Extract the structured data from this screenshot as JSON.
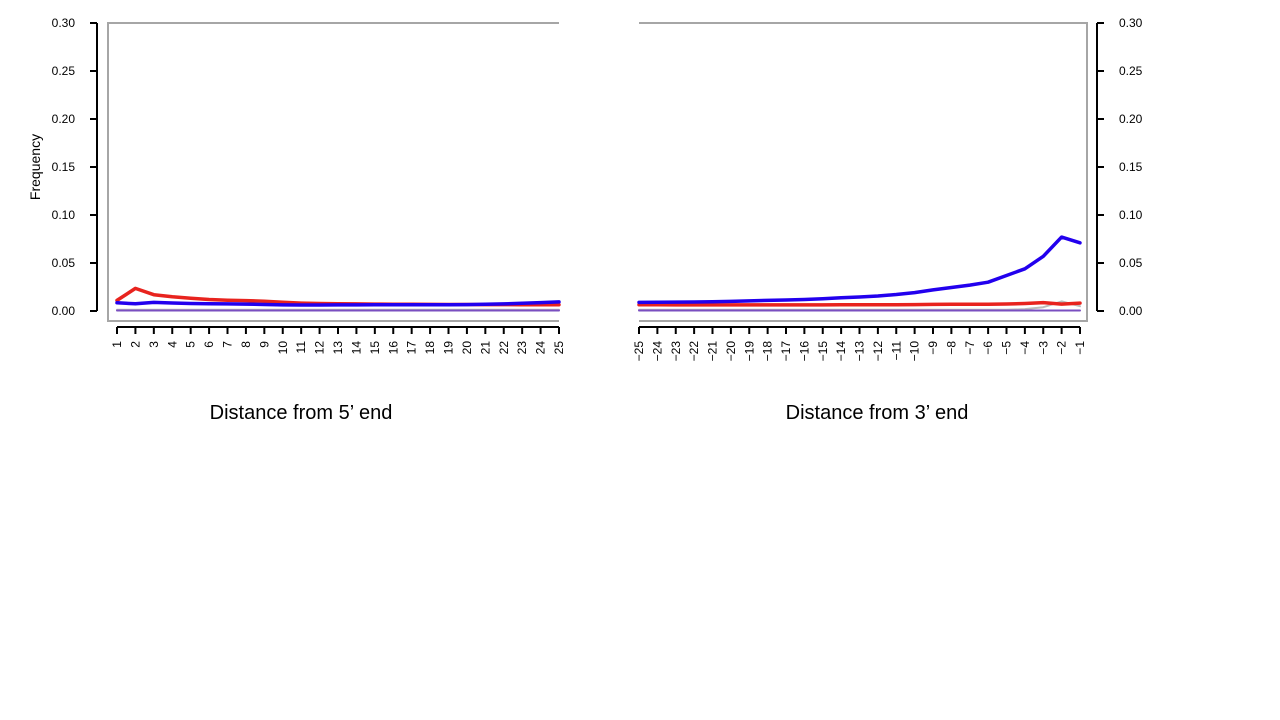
{
  "chart_data": [
    {
      "type": "line",
      "panel": "left",
      "xlabel": "Distance from 5’ end",
      "ylabel": "Frequency",
      "ylim": [
        0,
        0.3
      ],
      "y_ticks": [
        "0.00",
        "0.05",
        "0.10",
        "0.15",
        "0.20",
        "0.25",
        "0.30"
      ],
      "y_axis_side": "left",
      "x": [
        "1",
        "2",
        "3",
        "4",
        "5",
        "6",
        "7",
        "8",
        "9",
        "10",
        "11",
        "12",
        "13",
        "14",
        "15",
        "16",
        "17",
        "18",
        "19",
        "20",
        "21",
        "22",
        "23",
        "24",
        "25"
      ],
      "series": [
        {
          "color": "#2200ee",
          "values": [
            0.0085,
            0.0075,
            0.009,
            0.0083,
            0.0078,
            0.0076,
            0.0074,
            0.0072,
            0.0068,
            0.0064,
            0.0062,
            0.0063,
            0.0064,
            0.0064,
            0.0065,
            0.0065,
            0.0065,
            0.0065,
            0.0066,
            0.0067,
            0.007,
            0.0074,
            0.008,
            0.0088,
            0.0095
          ]
        },
        {
          "color": "#e8231e",
          "values": [
            0.011,
            0.0235,
            0.017,
            0.0148,
            0.0132,
            0.012,
            0.0112,
            0.0108,
            0.0102,
            0.0091,
            0.0082,
            0.0078,
            0.0076,
            0.0074,
            0.0072,
            0.0071,
            0.007,
            0.0069,
            0.0068,
            0.0068,
            0.0067,
            0.0067,
            0.0066,
            0.0066,
            0.0065
          ]
        },
        {
          "color": "#7a4fc0",
          "values": [
            0.0005,
            0.0005,
            0.0005,
            0.0005,
            0.0005,
            0.0005,
            0.0005,
            0.0005,
            0.0005,
            0.0005,
            0.0005,
            0.0005,
            0.0005,
            0.0005,
            0.0005,
            0.0005,
            0.0005,
            0.0005,
            0.0005,
            0.0005,
            0.0005,
            0.0005,
            0.0005,
            0.0005,
            0.0005
          ]
        },
        {
          "color": "#bbbbbb",
          "values": [
            0.0012,
            0.0012,
            0.0012,
            0.0012,
            0.0012,
            0.0012,
            0.0012,
            0.0012,
            0.0012,
            0.0012,
            0.0012,
            0.0012,
            0.0012,
            0.0012,
            0.0012,
            0.0012,
            0.0012,
            0.0012,
            0.0012,
            0.0012,
            0.0012,
            0.0012,
            0.0012,
            0.0012,
            0.0012
          ]
        }
      ]
    },
    {
      "type": "line",
      "panel": "right",
      "xlabel": "Distance from 3’ end",
      "ylabel": "",
      "ylim": [
        0,
        0.3
      ],
      "y_ticks": [
        "0.00",
        "0.05",
        "0.10",
        "0.15",
        "0.20",
        "0.25",
        "0.30"
      ],
      "y_axis_side": "right",
      "x": [
        "−25",
        "−24",
        "−23",
        "−22",
        "−21",
        "−20",
        "−19",
        "−18",
        "−17",
        "−16",
        "−15",
        "−14",
        "−13",
        "−12",
        "−11",
        "−10",
        "−9",
        "−8",
        "−7",
        "−6",
        "−5",
        "−4",
        "−3",
        "−2",
        "−1"
      ],
      "series": [
        {
          "color": "#2200ee",
          "values": [
            0.009,
            0.0092,
            0.0093,
            0.0094,
            0.0096,
            0.01,
            0.0105,
            0.011,
            0.0115,
            0.012,
            0.0128,
            0.0138,
            0.0146,
            0.0156,
            0.0172,
            0.0192,
            0.022,
            0.0245,
            0.027,
            0.03,
            0.037,
            0.044,
            0.057,
            0.077,
            0.071
          ]
        },
        {
          "color": "#e8231e",
          "values": [
            0.0065,
            0.0065,
            0.0064,
            0.0064,
            0.0064,
            0.0064,
            0.0064,
            0.0064,
            0.0064,
            0.0064,
            0.0064,
            0.0065,
            0.0065,
            0.0065,
            0.0066,
            0.0067,
            0.0069,
            0.0071,
            0.007,
            0.007,
            0.0073,
            0.0078,
            0.0088,
            0.0072,
            0.0082
          ]
        },
        {
          "color": "#7a4fc0",
          "values": [
            0.0005,
            0.0005,
            0.0005,
            0.0005,
            0.0005,
            0.0005,
            0.0005,
            0.0005,
            0.0005,
            0.0005,
            0.0005,
            0.0005,
            0.0005,
            0.0005,
            0.0005,
            0.0005,
            0.0005,
            0.0005,
            0.0005,
            0.0005,
            0.0005,
            0.0005,
            0.0005,
            0.0005,
            0.0005
          ]
        },
        {
          "color": "#bbbbbb",
          "values": [
            0.0012,
            0.0012,
            0.0012,
            0.0012,
            0.0012,
            0.0012,
            0.0012,
            0.0012,
            0.0012,
            0.0012,
            0.0012,
            0.0012,
            0.0012,
            0.0012,
            0.0012,
            0.0012,
            0.0012,
            0.0012,
            0.0012,
            0.0012,
            0.0012,
            0.002,
            0.004,
            0.01,
            0.005
          ]
        }
      ]
    }
  ]
}
